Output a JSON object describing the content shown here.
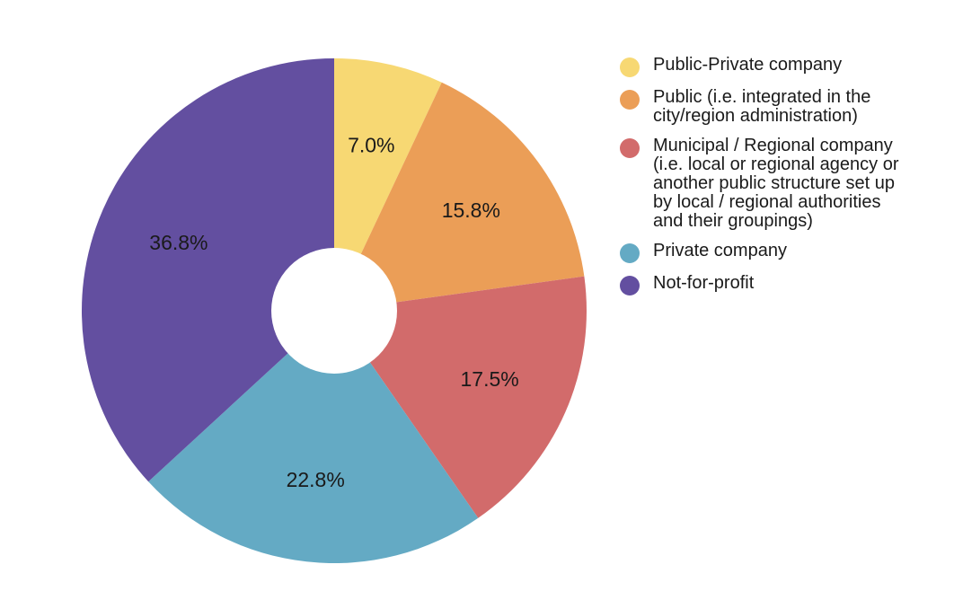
{
  "chart_data": {
    "type": "pie",
    "donut": true,
    "title": "",
    "legend_position": "right",
    "slices": [
      {
        "label": "Public-Private company",
        "value": 7.0,
        "display": "7.0%",
        "color": "#f7d873"
      },
      {
        "label": "Public (i.e. integrated in the\ncity/region administration)",
        "value": 15.8,
        "display": "15.8%",
        "color": "#eb9e57"
      },
      {
        "label": "Municipal / Regional company\n(i.e. local or regional agency or\nanother public structure set up\nby local / regional authorities\nand their groupings)",
        "value": 17.5,
        "display": "17.5%",
        "color": "#d26b6b"
      },
      {
        "label": "Private company",
        "value": 22.8,
        "display": "22.8%",
        "color": "#64aac4"
      },
      {
        "label": "Not-for-profit",
        "value": 36.8,
        "display": "36.8%",
        "color": "#634fa0"
      }
    ]
  }
}
